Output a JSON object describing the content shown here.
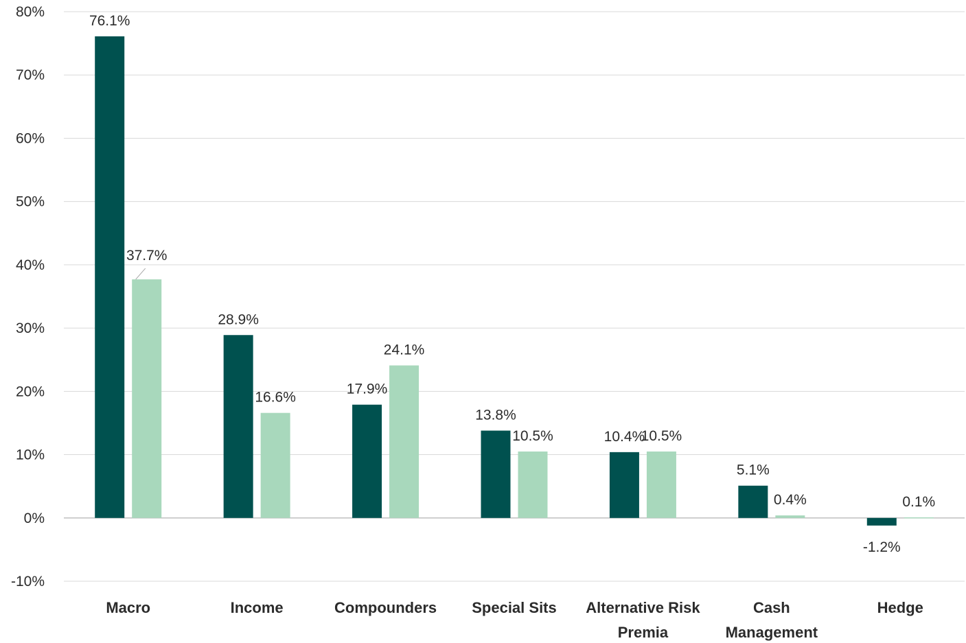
{
  "chart_data": {
    "type": "bar",
    "categories": [
      [
        "Macro"
      ],
      [
        "Income"
      ],
      [
        "Compounders"
      ],
      [
        "Special Sits"
      ],
      [
        "Alternative Risk",
        "Premia"
      ],
      [
        "Cash",
        "Management"
      ],
      [
        "Hedge"
      ]
    ],
    "series": [
      {
        "values": [
          76.1,
          28.9,
          17.9,
          13.8,
          10.4,
          5.1,
          -1.2
        ],
        "labels": [
          "76.1%",
          "28.9%",
          "17.9%",
          "13.8%",
          "10.4%",
          "5.1%",
          "-1.2%"
        ]
      },
      {
        "values": [
          37.7,
          16.6,
          24.1,
          10.5,
          10.5,
          0.4,
          0.1
        ],
        "labels": [
          "37.7%",
          "16.6%",
          "24.1%",
          "10.5%",
          "10.5%",
          "0.4%",
          "0.1%"
        ]
      }
    ],
    "y_ticks": [
      "80%",
      "70%",
      "60%",
      "50%",
      "40%",
      "30%",
      "20%",
      "10%",
      "0%",
      "-10%"
    ],
    "ylim": [
      -10,
      80
    ],
    "grid": true,
    "colors": {
      "series_1": "#00514f",
      "series_2": "#a8d8bc",
      "grid": "#d9d9d9",
      "zero_line": "#bfbfbf"
    }
  }
}
